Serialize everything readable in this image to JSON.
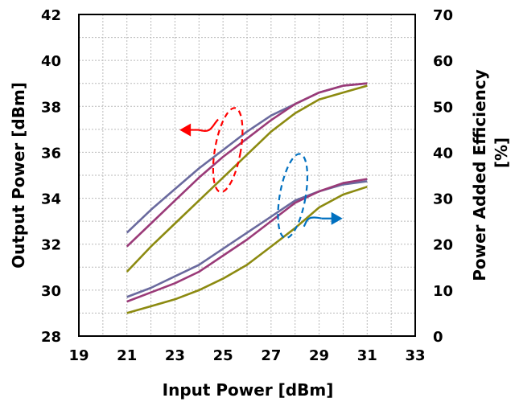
{
  "chart_data": {
    "type": "line",
    "xlabel": "Input Power [dBm]",
    "ylabel_left": "Output Power [dBm]",
    "ylabel_right_line1": "Power Added Efficiency",
    "ylabel_right_line2": "[%]",
    "xlim": [
      19,
      33
    ],
    "ylim_left": [
      28,
      42
    ],
    "ylim_right": [
      0,
      70
    ],
    "xticks": [
      19,
      21,
      23,
      25,
      27,
      29,
      31,
      33
    ],
    "yticks_left": [
      28,
      30,
      32,
      34,
      36,
      38,
      40,
      42
    ],
    "yticks_right": [
      0,
      10,
      20,
      30,
      40,
      50,
      60,
      70
    ],
    "grid": true,
    "series": [
      {
        "axis": "left",
        "color": "#6a6a9e",
        "points": [
          [
            21,
            32.5
          ],
          [
            22,
            33.5
          ],
          [
            23,
            34.4
          ],
          [
            24,
            35.3
          ],
          [
            25,
            36.1
          ],
          [
            26,
            36.9
          ],
          [
            27,
            37.6
          ],
          [
            28,
            38.1
          ],
          [
            29,
            38.6
          ],
          [
            30,
            38.9
          ],
          [
            31,
            39.0
          ]
        ]
      },
      {
        "axis": "left",
        "color": "#9a3a78",
        "points": [
          [
            21,
            31.9
          ],
          [
            22,
            32.9
          ],
          [
            23,
            33.9
          ],
          [
            24,
            34.9
          ],
          [
            25,
            35.8
          ],
          [
            26,
            36.6
          ],
          [
            27,
            37.4
          ],
          [
            28,
            38.1
          ],
          [
            29,
            38.6
          ],
          [
            30,
            38.9
          ],
          [
            31,
            39.0
          ]
        ]
      },
      {
        "axis": "left",
        "color": "#8c8a10",
        "points": [
          [
            21,
            30.8
          ],
          [
            22,
            31.9
          ],
          [
            23,
            32.9
          ],
          [
            24,
            33.9
          ],
          [
            25,
            34.9
          ],
          [
            26,
            35.9
          ],
          [
            27,
            36.9
          ],
          [
            28,
            37.7
          ],
          [
            29,
            38.3
          ],
          [
            30,
            38.6
          ],
          [
            31,
            38.9
          ]
        ]
      },
      {
        "axis": "right",
        "color": "#6a6a9e",
        "points": [
          [
            21,
            8.5
          ],
          [
            22,
            10.5
          ],
          [
            23,
            13
          ],
          [
            24,
            15.5
          ],
          [
            25,
            19
          ],
          [
            26,
            22.5
          ],
          [
            27,
            26
          ],
          [
            28,
            29.5
          ],
          [
            29,
            31.5
          ],
          [
            30,
            33
          ],
          [
            31,
            33.7
          ]
        ]
      },
      {
        "axis": "right",
        "color": "#9a3a78",
        "points": [
          [
            21,
            7.5
          ],
          [
            22,
            9.5
          ],
          [
            23,
            11.5
          ],
          [
            24,
            14
          ],
          [
            25,
            17.5
          ],
          [
            26,
            21
          ],
          [
            27,
            25
          ],
          [
            28,
            29
          ],
          [
            29,
            31.5
          ],
          [
            30,
            33.3
          ],
          [
            31,
            34.2
          ]
        ]
      },
      {
        "axis": "right",
        "color": "#8c8a10",
        "points": [
          [
            21,
            5
          ],
          [
            22,
            6.5
          ],
          [
            23,
            8
          ],
          [
            24,
            10
          ],
          [
            25,
            12.5
          ],
          [
            26,
            15.5
          ],
          [
            27,
            19.5
          ],
          [
            28,
            23.5
          ],
          [
            29,
            28
          ],
          [
            30,
            30.8
          ],
          [
            31,
            32.5
          ]
        ]
      }
    ],
    "annotations": [
      {
        "target": "left",
        "color": "#ff0000"
      },
      {
        "target": "right",
        "color": "#0070c0"
      }
    ]
  }
}
